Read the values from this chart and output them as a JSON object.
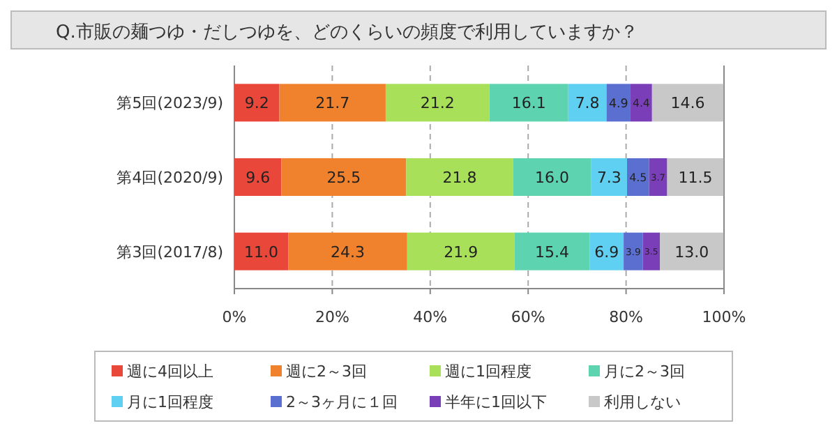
{
  "chart_data": {
    "type": "bar",
    "orientation": "horizontal",
    "stacked": true,
    "title": "Q.市販の麺つゆ・だしつゆを、どのくらいの頻度で利用していますか？",
    "categories": [
      "第5回(2023/9)",
      "第4回(2020/9)",
      "第3回(2017/8)"
    ],
    "series": [
      {
        "name": "週に4回以上",
        "color": "#e8473a",
        "values": [
          9.2,
          9.6,
          11.0
        ],
        "value_labels": [
          "9.2",
          "9.6",
          "11.0"
        ]
      },
      {
        "name": "週に2～3回",
        "color": "#f0822e",
        "values": [
          21.7,
          25.5,
          24.3
        ],
        "value_labels": [
          "21.7",
          "25.5",
          "24.3"
        ]
      },
      {
        "name": "週に1回程度",
        "color": "#a8e05a",
        "values": [
          21.2,
          21.8,
          21.9
        ],
        "value_labels": [
          "21.2",
          "21.8",
          "21.9"
        ]
      },
      {
        "name": "月に2～3回",
        "color": "#5dd3b0",
        "values": [
          16.1,
          16.0,
          15.4
        ],
        "value_labels": [
          "16.1",
          "16.0",
          "15.4"
        ]
      },
      {
        "name": "月に1回程度",
        "color": "#5fd0f2",
        "values": [
          7.8,
          7.3,
          6.9
        ],
        "value_labels": [
          "7.8",
          "7.3",
          "6.9"
        ]
      },
      {
        "name": "2～3ヶ月に１回",
        "color": "#5a6fd0",
        "values": [
          4.9,
          4.5,
          3.9
        ],
        "value_labels": [
          "4.9",
          "4.5",
          "3.9"
        ]
      },
      {
        "name": "半年に1回以下",
        "color": "#7a3fb8",
        "values": [
          4.4,
          3.7,
          3.5
        ],
        "value_labels": [
          "4.4",
          "3.7",
          "3.5"
        ]
      },
      {
        "name": "利用しない",
        "color": "#c8c8c8",
        "values": [
          14.6,
          11.5,
          13.0
        ],
        "value_labels": [
          "14.6",
          "11.5",
          "13.0"
        ]
      }
    ],
    "xlim": [
      0,
      100
    ],
    "xticks": [
      {
        "value": 0,
        "label": "0%"
      },
      {
        "value": 20,
        "label": "20%"
      },
      {
        "value": 40,
        "label": "40%"
      },
      {
        "value": 60,
        "label": "60%"
      },
      {
        "value": 80,
        "label": "80%"
      },
      {
        "value": 100,
        "label": "100%"
      }
    ],
    "grid": "x",
    "legend": "bottom"
  }
}
